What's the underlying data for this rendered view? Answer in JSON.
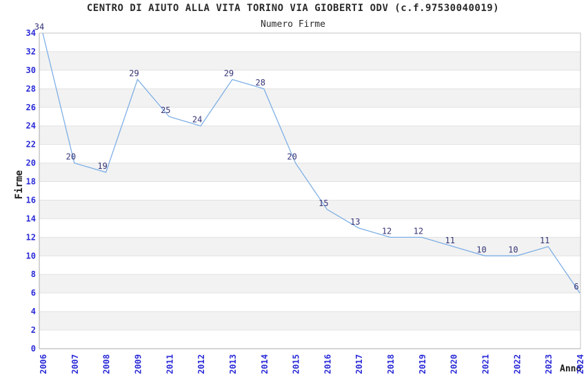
{
  "chart_data": {
    "type": "line",
    "title": "CENTRO DI AIUTO ALLA VITA TORINO VIA GIOBERTI ODV (c.f.97530040019)",
    "subtitle": "Numero Firme",
    "xlabel": "Anno",
    "ylabel": "Firme",
    "categories": [
      "2006",
      "2007",
      "2008",
      "2009",
      "2011",
      "2012",
      "2013",
      "2014",
      "2015",
      "2016",
      "2017",
      "2018",
      "2019",
      "2020",
      "2021",
      "2022",
      "2023",
      "2024"
    ],
    "values": [
      34,
      20,
      19,
      29,
      25,
      24,
      29,
      28,
      20,
      15,
      13,
      12,
      12,
      11,
      10,
      10,
      11,
      6
    ],
    "ylim": [
      0,
      34
    ],
    "ytick_step": 2,
    "grid": true,
    "banded_background": true,
    "legend_position": "none",
    "x_tick_rotation": -90,
    "colors": {
      "line": "#7dafe6",
      "tick_label": "#2b2bd8",
      "value_label": "#333377",
      "band_gray": "#f2f2f2",
      "band_white": "#ffffff",
      "gridline": "#e2e2e2",
      "plot_border": "#c4c4c4",
      "axis_line": "#a8a8a8",
      "title_text": "#2a2a2a"
    }
  }
}
